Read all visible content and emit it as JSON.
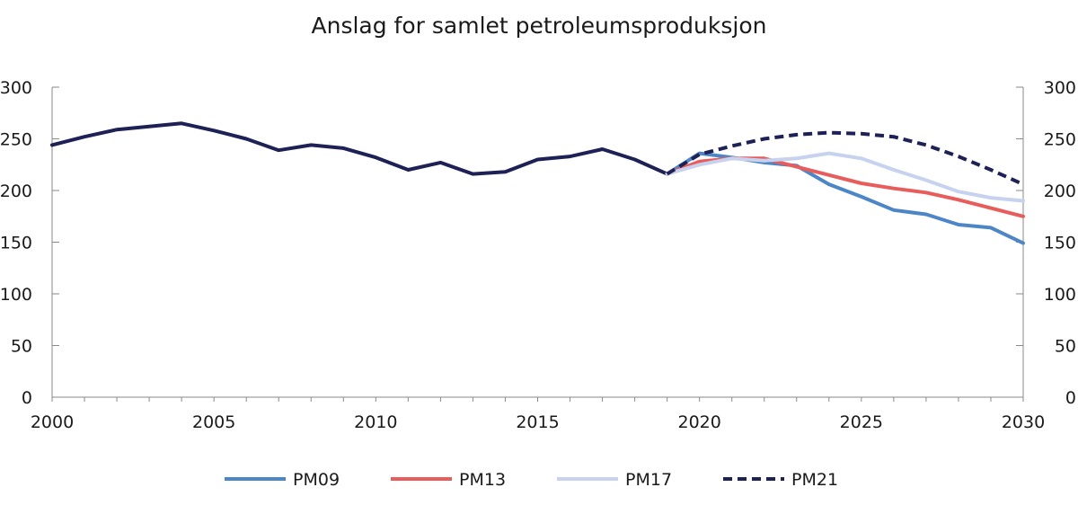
{
  "chart_data": {
    "type": "line",
    "title": "Anslag for samlet petroleumsproduksjon",
    "xlabel": "",
    "ylabel": "",
    "xlim": [
      2000,
      2030
    ],
    "ylim": [
      0,
      300
    ],
    "x_ticks": [
      "2000",
      "2005",
      "2010",
      "2015",
      "2020",
      "2025",
      "2030"
    ],
    "y_ticks": [
      "0",
      "50",
      "100",
      "150",
      "200",
      "250",
      "300"
    ],
    "grid": false,
    "dual_y_axis": true,
    "legend_position": "bottom",
    "history": {
      "x": [
        2000,
        2001,
        2002,
        2003,
        2004,
        2005,
        2006,
        2007,
        2008,
        2009,
        2010,
        2011,
        2012,
        2013,
        2014,
        2015,
        2016,
        2017,
        2018,
        2019
      ],
      "y": [
        244,
        252,
        259,
        262,
        265,
        258,
        250,
        239,
        244,
        241,
        232,
        220,
        227,
        216,
        218,
        230,
        233,
        240,
        230,
        216
      ],
      "color": "#1e2155"
    },
    "series": [
      {
        "name": "PM09",
        "color": "#4d86c6",
        "dashed": false,
        "x": [
          2019,
          2020,
          2021,
          2022,
          2023,
          2024,
          2025,
          2026,
          2027,
          2028,
          2029,
          2030
        ],
        "y": [
          216,
          236,
          232,
          227,
          224,
          206,
          194,
          181,
          177,
          167,
          164,
          149
        ]
      },
      {
        "name": "PM13",
        "color": "#e85c5c",
        "dashed": false,
        "x": [
          2019,
          2020,
          2021,
          2022,
          2023,
          2024,
          2025,
          2026,
          2027,
          2028,
          2029,
          2030
        ],
        "y": [
          216,
          228,
          231,
          231,
          223,
          215,
          207,
          202,
          198,
          191,
          183,
          175
        ]
      },
      {
        "name": "PM17",
        "color": "#c6d2ee",
        "dashed": false,
        "x": [
          2019,
          2020,
          2021,
          2022,
          2023,
          2024,
          2025,
          2026,
          2027,
          2028,
          2029,
          2030
        ],
        "y": [
          216,
          225,
          231,
          229,
          231,
          236,
          231,
          220,
          210,
          199,
          193,
          190
        ]
      },
      {
        "name": "PM21",
        "color": "#1e2155",
        "dashed": true,
        "x": [
          2019,
          2020,
          2021,
          2022,
          2023,
          2024,
          2025,
          2026,
          2027,
          2028,
          2029,
          2030
        ],
        "y": [
          216,
          235,
          243,
          250,
          254,
          256,
          255,
          252,
          244,
          233,
          220,
          206
        ]
      }
    ]
  }
}
